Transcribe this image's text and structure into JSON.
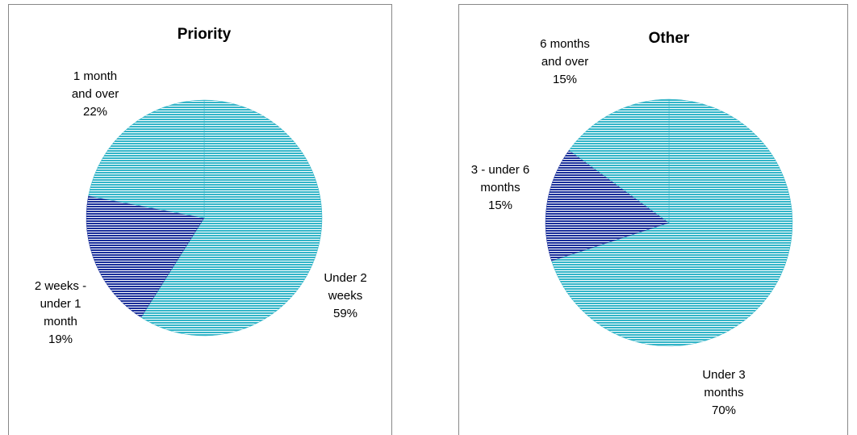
{
  "chart_data": [
    {
      "type": "pie",
      "title": "Priority",
      "categories": [
        "Under 2 weeks",
        "2 weeks - under 1 month",
        "1 month and over"
      ],
      "values": [
        59,
        19,
        22
      ],
      "value_labels": [
        "59%",
        "19%",
        "22%"
      ],
      "colors": [
        "#33b5c8",
        "#1a2f9a",
        "#33b5c8"
      ]
    },
    {
      "type": "pie",
      "title": "Other",
      "categories": [
        "Under 3 months",
        "3 - under 6 months",
        "6 months and over"
      ],
      "values": [
        70,
        15,
        15
      ],
      "value_labels": [
        "70%",
        "15%",
        "15%"
      ],
      "colors": [
        "#33b5c8",
        "#1a2f9a",
        "#33b5c8"
      ]
    }
  ]
}
